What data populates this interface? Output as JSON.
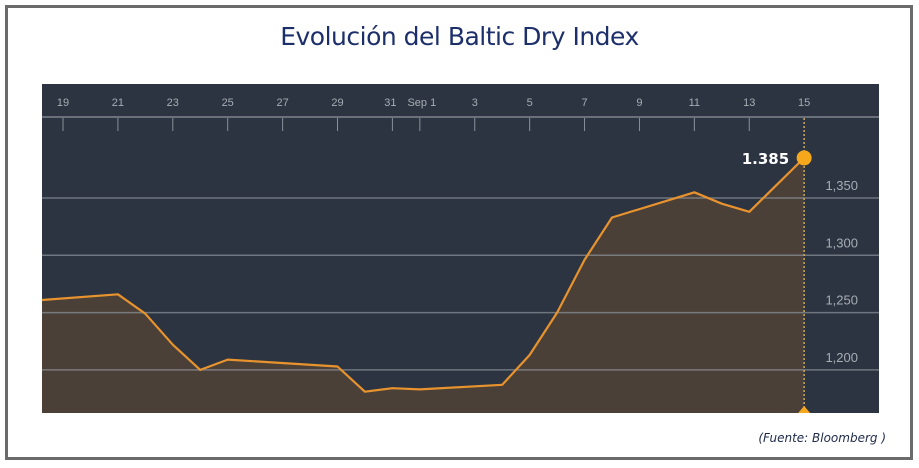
{
  "title": "Evolución del Baltic Dry Index",
  "source": "(Fuente: Bloomberg )",
  "colors": {
    "background": "#2b3440",
    "line": "#e8932e",
    "fill": "#4b4038",
    "marker": "#f5a81c",
    "title": "#1c2f6b",
    "grid": "#6a717b"
  },
  "callout": {
    "label": "1.385",
    "date": "Sep 15"
  },
  "chart_data": {
    "type": "area",
    "title": "Evolución del Baltic Dry Index",
    "xlabel": "",
    "ylabel": "",
    "x_tick_labels": [
      "19",
      "21",
      "23",
      "25",
      "27",
      "29",
      "31",
      "Sep 1",
      "3",
      "5",
      "7",
      "9",
      "11",
      "13",
      "15"
    ],
    "y_tick_labels": [
      "1,350",
      "1,300",
      "1,250",
      "1,200"
    ],
    "y_ticks": [
      1350,
      1300,
      1250,
      1200
    ],
    "ylim": [
      1162,
      1399
    ],
    "grid": true,
    "legend": "none",
    "x": [
      "Aug 18",
      "Aug 21",
      "Aug 22",
      "Aug 23",
      "Aug 24",
      "Aug 25",
      "Aug 29",
      "Aug 30",
      "Aug 31",
      "Sep 1",
      "Sep 4",
      "Sep 5",
      "Sep 6",
      "Sep 7",
      "Sep 8",
      "Sep 11",
      "Sep 12",
      "Sep 13",
      "Sep 15"
    ],
    "series": [
      {
        "name": "Baltic Dry Index",
        "values": [
          1261,
          1266,
          1249,
          1222,
          1200,
          1209,
          1203,
          1181,
          1184,
          1183,
          1187,
          1213,
          1250,
          1296,
          1333,
          1355,
          1345,
          1338,
          1385
        ]
      }
    ],
    "annotations": [
      {
        "x": "Sep 15",
        "y": 1385,
        "text": "1.385"
      }
    ],
    "source": "(Fuente: Bloomberg )"
  }
}
